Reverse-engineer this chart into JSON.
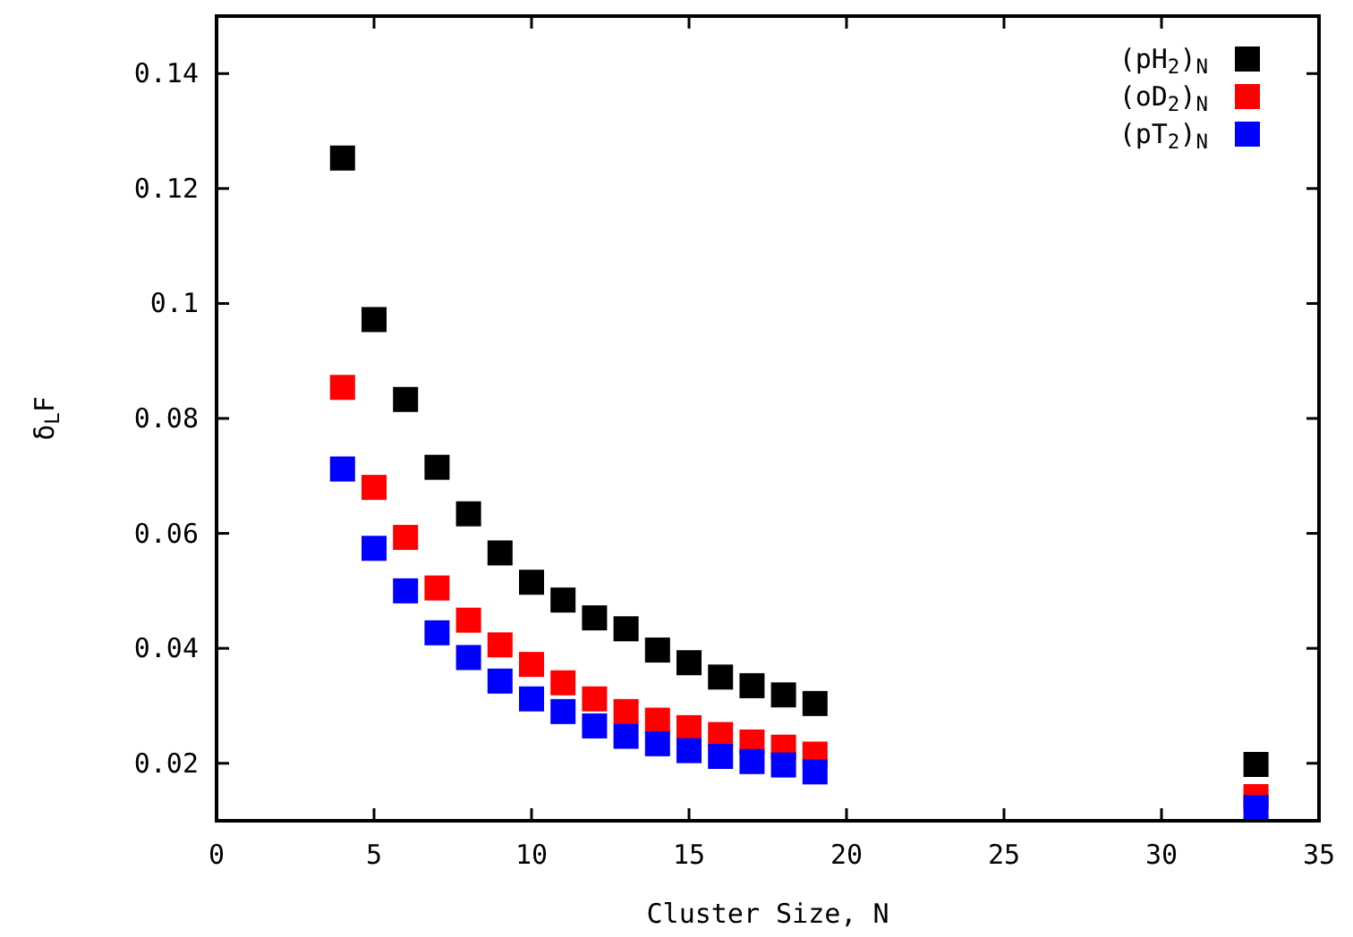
{
  "chart_data": {
    "type": "scatter",
    "xlabel": "Cluster Size, N",
    "ylabel": "δ$_{L}$F",
    "x": [
      4,
      5,
      6,
      7,
      8,
      9,
      10,
      11,
      12,
      13,
      14,
      15,
      16,
      17,
      18,
      19,
      33
    ],
    "series": [
      {
        "name": "(pH$_{2}$)$_{N}$",
        "color": "#000000",
        "values": [
          0.1253,
          0.0972,
          0.0833,
          0.0715,
          0.0634,
          0.0566,
          0.0515,
          0.0484,
          0.0453,
          0.0434,
          0.0397,
          0.0375,
          0.035,
          0.0335,
          0.0319,
          0.0304,
          0.0198
        ]
      },
      {
        "name": "(oD$_{2}$)$_{N}$",
        "color": "#ff0000",
        "values": [
          0.0854,
          0.068,
          0.0593,
          0.0505,
          0.0449,
          0.0406,
          0.0372,
          0.034,
          0.0312,
          0.029,
          0.0275,
          0.0262,
          0.025,
          0.0237,
          0.0228,
          0.0216,
          0.0142
        ]
      },
      {
        "name": "(pT$_{2}$)$_{N}$",
        "color": "#0000ff",
        "values": [
          0.0712,
          0.0574,
          0.05,
          0.0427,
          0.0384,
          0.0343,
          0.0312,
          0.029,
          0.0265,
          0.0247,
          0.0234,
          0.0222,
          0.0212,
          0.0203,
          0.0197,
          0.0185,
          0.0123
        ]
      }
    ],
    "xlim": [
      0,
      35
    ],
    "xticks": [
      0,
      5,
      10,
      15,
      20,
      25,
      30,
      35
    ],
    "ylim": [
      0.01,
      0.15
    ],
    "yticks": [
      0.02,
      0.04,
      0.06,
      0.08,
      0.1,
      0.12,
      0.14
    ],
    "marker": "square",
    "legend": "top right",
    "grid": false
  }
}
